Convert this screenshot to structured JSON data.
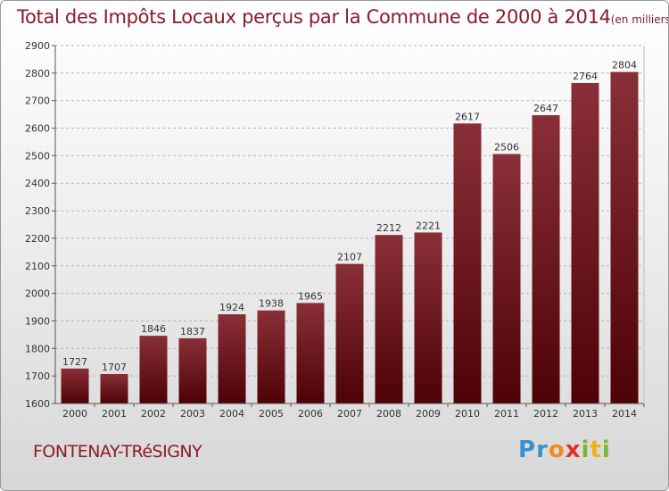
{
  "header": {
    "title": "Total des Impôts Locaux perçus par la Commune de 2000 à 2014",
    "unit": "(en milliers d'€)"
  },
  "commune": "FONTENAY-TRéSIGNY",
  "logo": {
    "text": "Proxiti",
    "letters": [
      {
        "ch": "P",
        "color": "#3a8fd0"
      },
      {
        "ch": "r",
        "color": "#3a8fd0"
      },
      {
        "ch": "o",
        "color": "#f08a1c"
      },
      {
        "ch": "x",
        "color": "#e0302a"
      },
      {
        "ch": "i",
        "color": "#7cb733"
      },
      {
        "ch": "t",
        "color": "#f0b21c"
      },
      {
        "ch": "i",
        "color": "#7cb733"
      }
    ]
  },
  "colors": {
    "bar_top": "#8a2f37",
    "bar_bottom": "#4d0206",
    "title": "#8b1a2a",
    "grid": "#b5b5b5"
  },
  "chart_data": {
    "type": "bar",
    "title": "Total des Impôts Locaux perçus par la Commune de 2000 à 2014",
    "xlabel": "",
    "ylabel": "",
    "categories": [
      "2000",
      "2001",
      "2002",
      "2003",
      "2004",
      "2005",
      "2006",
      "2007",
      "2008",
      "2009",
      "2010",
      "2011",
      "2012",
      "2013",
      "2014"
    ],
    "values": [
      1727,
      1707,
      1846,
      1837,
      1924,
      1938,
      1965,
      2107,
      2212,
      2221,
      2617,
      2506,
      2647,
      2764,
      2804
    ],
    "ylim": [
      1600,
      2900
    ],
    "yticks": [
      1600,
      1700,
      1800,
      1900,
      2000,
      2100,
      2200,
      2300,
      2400,
      2500,
      2600,
      2700,
      2800,
      2900
    ],
    "grid": "horizontal dashed",
    "legend": "none"
  }
}
